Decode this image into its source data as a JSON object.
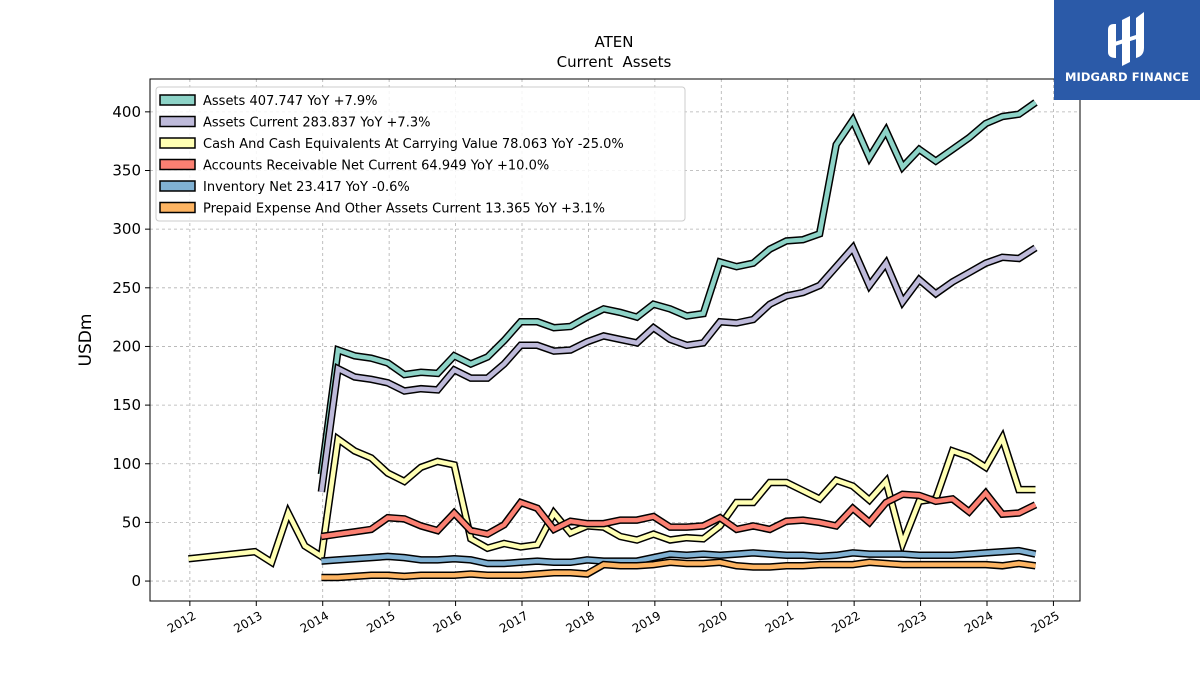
{
  "brand": {
    "name": "MIDGARD FINANCE",
    "bg_color": "#2b5aa8"
  },
  "chart_data": {
    "type": "line",
    "title": "ATEN",
    "subtitle": "Current  Assets",
    "ylabel": "USDm",
    "xlabel": "",
    "xlim": [
      2011.4,
      2025.4
    ],
    "ylim": [
      -17,
      428
    ],
    "x_ticks": [
      "2012",
      "2013",
      "2014",
      "2015",
      "2016",
      "2017",
      "2018",
      "2019",
      "2020",
      "2021",
      "2022",
      "2023",
      "2024",
      "2025"
    ],
    "y_ticks": [
      "0",
      "50",
      "100",
      "150",
      "200",
      "250",
      "300",
      "350",
      "400"
    ],
    "grid": true,
    "legend_position": "top-left",
    "series": [
      {
        "name": "Assets",
        "legend": "Assets  407.747 YoY +7.9%",
        "color": "#8dd3c7",
        "points": [
          [
            2013.98,
            91
          ],
          [
            2014.23,
            197
          ],
          [
            2014.48,
            192
          ],
          [
            2014.73,
            190
          ],
          [
            2014.98,
            186
          ],
          [
            2015.23,
            176
          ],
          [
            2015.48,
            178
          ],
          [
            2015.73,
            177
          ],
          [
            2015.98,
            192
          ],
          [
            2016.23,
            185
          ],
          [
            2016.48,
            191
          ],
          [
            2016.73,
            205
          ],
          [
            2016.98,
            221
          ],
          [
            2017.23,
            221
          ],
          [
            2017.48,
            216
          ],
          [
            2017.73,
            217
          ],
          [
            2017.98,
            225
          ],
          [
            2018.23,
            232
          ],
          [
            2018.48,
            229
          ],
          [
            2018.73,
            225
          ],
          [
            2018.98,
            236
          ],
          [
            2019.23,
            232
          ],
          [
            2019.48,
            226
          ],
          [
            2019.73,
            228
          ],
          [
            2019.98,
            272
          ],
          [
            2020.23,
            268
          ],
          [
            2020.48,
            271
          ],
          [
            2020.73,
            283
          ],
          [
            2020.98,
            290
          ],
          [
            2021.23,
            291
          ],
          [
            2021.48,
            296
          ],
          [
            2021.73,
            372
          ],
          [
            2021.98,
            393
          ],
          [
            2022.23,
            361
          ],
          [
            2022.48,
            384
          ],
          [
            2022.73,
            353
          ],
          [
            2022.98,
            368
          ],
          [
            2023.23,
            358
          ],
          [
            2023.48,
            368
          ],
          [
            2023.73,
            378
          ],
          [
            2023.98,
            390
          ],
          [
            2024.23,
            396
          ],
          [
            2024.48,
            398
          ],
          [
            2024.73,
            408
          ]
        ]
      },
      {
        "name": "Assets Current",
        "legend": "Assets Current  283.837 YoY +7.3%",
        "color": "#bebada",
        "points": [
          [
            2013.98,
            76
          ],
          [
            2014.23,
            181
          ],
          [
            2014.48,
            174
          ],
          [
            2014.73,
            172
          ],
          [
            2014.98,
            169
          ],
          [
            2015.23,
            162
          ],
          [
            2015.48,
            164
          ],
          [
            2015.73,
            163
          ],
          [
            2015.98,
            180
          ],
          [
            2016.23,
            173
          ],
          [
            2016.48,
            173
          ],
          [
            2016.73,
            185
          ],
          [
            2016.98,
            201
          ],
          [
            2017.23,
            201
          ],
          [
            2017.48,
            196
          ],
          [
            2017.73,
            197
          ],
          [
            2017.98,
            204
          ],
          [
            2018.23,
            209
          ],
          [
            2018.48,
            206
          ],
          [
            2018.73,
            203
          ],
          [
            2018.98,
            216
          ],
          [
            2019.23,
            206
          ],
          [
            2019.48,
            201
          ],
          [
            2019.73,
            203
          ],
          [
            2019.98,
            221
          ],
          [
            2020.23,
            220
          ],
          [
            2020.48,
            223
          ],
          [
            2020.73,
            236
          ],
          [
            2020.98,
            243
          ],
          [
            2021.23,
            246
          ],
          [
            2021.48,
            252
          ],
          [
            2021.73,
            268
          ],
          [
            2021.98,
            284
          ],
          [
            2022.23,
            252
          ],
          [
            2022.48,
            271
          ],
          [
            2022.73,
            238
          ],
          [
            2022.98,
            257
          ],
          [
            2023.23,
            245
          ],
          [
            2023.48,
            255
          ],
          [
            2023.73,
            263
          ],
          [
            2023.98,
            271
          ],
          [
            2024.23,
            276
          ],
          [
            2024.48,
            275
          ],
          [
            2024.73,
            284
          ]
        ]
      },
      {
        "name": "Cash And Cash Equivalents At Carrying Value",
        "legend": "Cash And Cash Equivalents At Carrying Value  78.063 YoY -25.0%",
        "color": "#ffffb3",
        "points": [
          [
            2011.98,
            19
          ],
          [
            2012.98,
            25
          ],
          [
            2013.23,
            16
          ],
          [
            2013.48,
            58
          ],
          [
            2013.73,
            30
          ],
          [
            2013.98,
            21
          ],
          [
            2014.23,
            121
          ],
          [
            2014.48,
            111
          ],
          [
            2014.73,
            105
          ],
          [
            2014.98,
            92
          ],
          [
            2015.23,
            85
          ],
          [
            2015.48,
            97
          ],
          [
            2015.73,
            102
          ],
          [
            2015.98,
            99
          ],
          [
            2016.23,
            36
          ],
          [
            2016.48,
            28
          ],
          [
            2016.73,
            32
          ],
          [
            2016.98,
            29
          ],
          [
            2017.23,
            31
          ],
          [
            2017.48,
            58
          ],
          [
            2017.73,
            41
          ],
          [
            2017.98,
            47
          ],
          [
            2018.23,
            46
          ],
          [
            2018.48,
            38
          ],
          [
            2018.73,
            35
          ],
          [
            2018.98,
            40
          ],
          [
            2019.23,
            35
          ],
          [
            2019.48,
            37
          ],
          [
            2019.73,
            36
          ],
          [
            2019.98,
            47
          ],
          [
            2020.23,
            67
          ],
          [
            2020.48,
            67
          ],
          [
            2020.73,
            84
          ],
          [
            2020.98,
            84
          ],
          [
            2021.23,
            77
          ],
          [
            2021.48,
            70
          ],
          [
            2021.73,
            86
          ],
          [
            2021.98,
            81
          ],
          [
            2022.23,
            69
          ],
          [
            2022.48,
            85
          ],
          [
            2022.73,
            32
          ],
          [
            2022.98,
            68
          ],
          [
            2023.23,
            70
          ],
          [
            2023.48,
            111
          ],
          [
            2023.73,
            106
          ],
          [
            2023.98,
            97
          ],
          [
            2024.23,
            122
          ],
          [
            2024.48,
            78
          ],
          [
            2024.73,
            78
          ]
        ]
      },
      {
        "name": "Accounts Receivable Net Current",
        "legend": "Accounts Receivable Net Current  64.949 YoY +10.0%",
        "color": "#fb8072",
        "points": [
          [
            2013.98,
            38
          ],
          [
            2014.23,
            40
          ],
          [
            2014.48,
            42
          ],
          [
            2014.73,
            44
          ],
          [
            2014.98,
            54
          ],
          [
            2015.23,
            53
          ],
          [
            2015.48,
            47
          ],
          [
            2015.73,
            43
          ],
          [
            2015.98,
            58
          ],
          [
            2016.23,
            43
          ],
          [
            2016.48,
            40
          ],
          [
            2016.73,
            48
          ],
          [
            2016.98,
            67
          ],
          [
            2017.23,
            62
          ],
          [
            2017.48,
            44
          ],
          [
            2017.73,
            51
          ],
          [
            2017.98,
            49
          ],
          [
            2018.23,
            49
          ],
          [
            2018.48,
            52
          ],
          [
            2018.73,
            52
          ],
          [
            2018.98,
            55
          ],
          [
            2019.23,
            46
          ],
          [
            2019.48,
            46
          ],
          [
            2019.73,
            47
          ],
          [
            2019.98,
            54
          ],
          [
            2020.23,
            44
          ],
          [
            2020.48,
            47
          ],
          [
            2020.73,
            44
          ],
          [
            2020.98,
            51
          ],
          [
            2021.23,
            52
          ],
          [
            2021.48,
            50
          ],
          [
            2021.73,
            47
          ],
          [
            2021.98,
            62
          ],
          [
            2022.23,
            50
          ],
          [
            2022.48,
            67
          ],
          [
            2022.73,
            74
          ],
          [
            2022.98,
            73
          ],
          [
            2023.23,
            68
          ],
          [
            2023.48,
            70
          ],
          [
            2023.73,
            59
          ],
          [
            2023.98,
            75
          ],
          [
            2024.23,
            57
          ],
          [
            2024.48,
            58
          ],
          [
            2024.73,
            65
          ]
        ]
      },
      {
        "name": "Inventory Net",
        "legend": "Inventory Net  23.417 YoY -0.6%",
        "color": "#80b1d3",
        "points": [
          [
            2013.98,
            17
          ],
          [
            2014.23,
            18
          ],
          [
            2014.48,
            19
          ],
          [
            2014.73,
            20
          ],
          [
            2014.98,
            21
          ],
          [
            2015.23,
            20
          ],
          [
            2015.48,
            18
          ],
          [
            2015.73,
            18
          ],
          [
            2015.98,
            19
          ],
          [
            2016.23,
            18
          ],
          [
            2016.48,
            15
          ],
          [
            2016.73,
            15
          ],
          [
            2016.98,
            16
          ],
          [
            2017.23,
            17
          ],
          [
            2017.48,
            16
          ],
          [
            2017.73,
            16
          ],
          [
            2017.98,
            18
          ],
          [
            2018.23,
            17
          ],
          [
            2018.48,
            17
          ],
          [
            2018.73,
            17
          ],
          [
            2018.98,
            20
          ],
          [
            2019.23,
            23
          ],
          [
            2019.48,
            22
          ],
          [
            2019.73,
            23
          ],
          [
            2019.98,
            22
          ],
          [
            2020.23,
            23
          ],
          [
            2020.48,
            24
          ],
          [
            2020.73,
            23
          ],
          [
            2020.98,
            22
          ],
          [
            2021.23,
            22
          ],
          [
            2021.48,
            21
          ],
          [
            2021.73,
            22
          ],
          [
            2021.98,
            24
          ],
          [
            2022.23,
            23
          ],
          [
            2022.48,
            23
          ],
          [
            2022.73,
            23
          ],
          [
            2022.98,
            22
          ],
          [
            2023.23,
            22
          ],
          [
            2023.48,
            22
          ],
          [
            2023.73,
            23
          ],
          [
            2023.98,
            24
          ],
          [
            2024.23,
            25
          ],
          [
            2024.48,
            26
          ],
          [
            2024.73,
            23
          ]
        ]
      },
      {
        "name": "Prepaid Expense And Other Assets Current",
        "legend": "Prepaid Expense And Other Assets Current  13.365 YoY +3.1%",
        "color": "#fdb462",
        "points": [
          [
            2013.98,
            3
          ],
          [
            2014.23,
            3
          ],
          [
            2014.48,
            4
          ],
          [
            2014.73,
            5
          ],
          [
            2014.98,
            5
          ],
          [
            2015.23,
            4
          ],
          [
            2015.48,
            5
          ],
          [
            2015.73,
            5
          ],
          [
            2015.98,
            5
          ],
          [
            2016.23,
            6
          ],
          [
            2016.48,
            5
          ],
          [
            2016.73,
            5
          ],
          [
            2016.98,
            5
          ],
          [
            2017.23,
            6
          ],
          [
            2017.48,
            7
          ],
          [
            2017.73,
            7
          ],
          [
            2017.98,
            6
          ],
          [
            2018.23,
            14
          ],
          [
            2018.48,
            13
          ],
          [
            2018.73,
            13
          ],
          [
            2018.98,
            14
          ],
          [
            2019.23,
            16
          ],
          [
            2019.48,
            15
          ],
          [
            2019.73,
            15
          ],
          [
            2019.98,
            16
          ],
          [
            2020.23,
            13
          ],
          [
            2020.48,
            12
          ],
          [
            2020.73,
            12
          ],
          [
            2020.98,
            13
          ],
          [
            2021.23,
            13
          ],
          [
            2021.48,
            14
          ],
          [
            2021.73,
            14
          ],
          [
            2021.98,
            14
          ],
          [
            2022.23,
            16
          ],
          [
            2022.48,
            15
          ],
          [
            2022.73,
            14
          ],
          [
            2022.98,
            14
          ],
          [
            2023.23,
            14
          ],
          [
            2023.48,
            14
          ],
          [
            2023.73,
            14
          ],
          [
            2023.98,
            14
          ],
          [
            2024.23,
            13
          ],
          [
            2024.48,
            15
          ],
          [
            2024.73,
            13
          ]
        ]
      }
    ]
  }
}
